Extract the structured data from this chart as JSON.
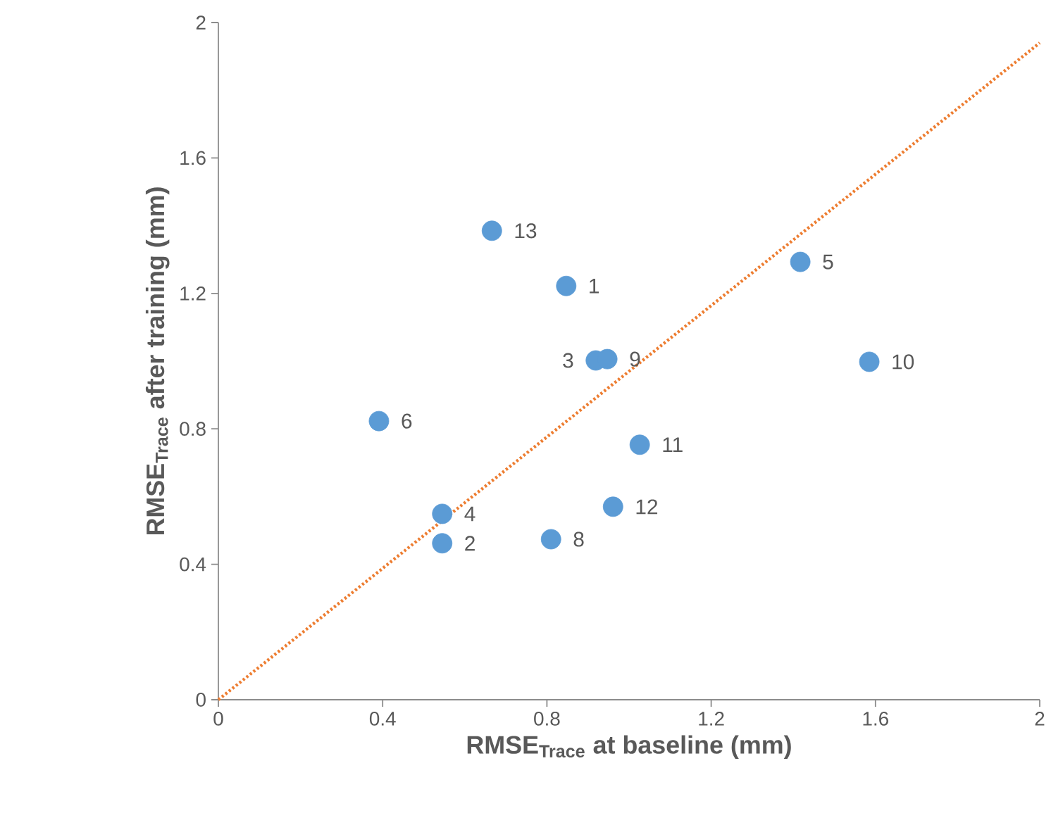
{
  "chart_data": {
    "type": "scatter",
    "xlabel": "RMSE$_{Trace}$ at baseline (mm)",
    "ylabel": "RMSE$_{Trace}$ after training (mm)",
    "xlim": [
      0,
      2
    ],
    "ylim": [
      0,
      2
    ],
    "xticks": [
      0,
      0.4,
      0.8,
      1.2,
      1.6,
      2
    ],
    "yticks": [
      0,
      0.4,
      0.8,
      1.2,
      1.6,
      2
    ],
    "series": [
      {
        "color": "#5b9bd5",
        "marker": "circle",
        "x": [
          0.847,
          0.545,
          0.919,
          0.545,
          1.417,
          0.391,
          0.81,
          0.947,
          1.585,
          1.026,
          0.961,
          0.666
        ],
        "values": [
          1.222,
          0.462,
          1.002,
          0.549,
          1.293,
          0.823,
          0.474,
          1.006,
          0.998,
          0.753,
          0.57,
          1.385
        ]
      },
      {
        "type": "line",
        "line_style": "dotted",
        "marker": "none",
        "color": "#ed7d31",
        "x": [
          0,
          2
        ],
        "values": [
          0,
          1.94
        ]
      }
    ],
    "annotations": [
      {
        "text": "1",
        "x": 0.847,
        "y": 1.222
      },
      {
        "text": "2",
        "x": 0.545,
        "y": 0.462
      },
      {
        "text": "3",
        "x": 0.919,
        "y": 1.002
      },
      {
        "text": "4",
        "x": 0.545,
        "y": 0.549
      },
      {
        "text": "5",
        "x": 1.417,
        "y": 1.293
      },
      {
        "text": "6",
        "x": 0.391,
        "y": 0.823
      },
      {
        "text": "8",
        "x": 0.81,
        "y": 0.474
      },
      {
        "text": "9",
        "x": 0.947,
        "y": 1.006
      },
      {
        "text": "10",
        "x": 1.585,
        "y": 0.998
      },
      {
        "text": "11",
        "x": 1.026,
        "y": 0.753
      },
      {
        "text": "12",
        "x": 0.961,
        "y": 0.57
      },
      {
        "text": "13",
        "x": 0.666,
        "y": 1.385
      }
    ]
  }
}
